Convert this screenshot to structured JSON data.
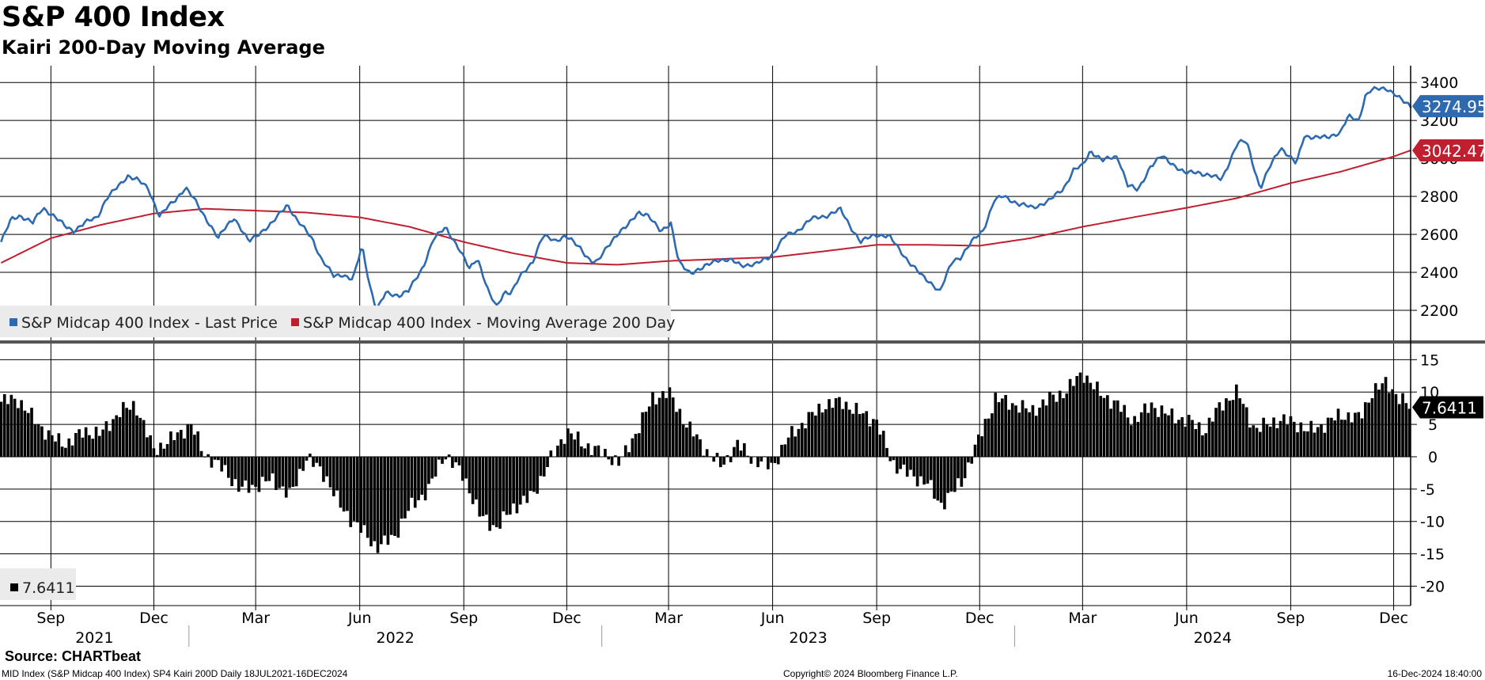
{
  "header": {
    "title": "S&P 400 Index",
    "subtitle": "Kairi 200-Day Moving Average"
  },
  "footer": {
    "source": "Source: CHARTbeat",
    "description": "MID Index (S&P Midcap 400 Index) SP4 Kairi 200D  Daily 18JUL2021-16DEC2024",
    "copyright": "Copyright© 2024 Bloomberg Finance L.P.",
    "timestamp": "16-Dec-2024 18:40:00"
  },
  "colors": {
    "price": "#2e6ab0",
    "moving_average": "#c01f2f",
    "kairi": "#000000",
    "grid": "#000000"
  },
  "chart_data": [
    {
      "type": "line",
      "name": "price-panel",
      "ylim": [
        2050,
        3480
      ],
      "yticks": [
        2200,
        2400,
        2600,
        2800,
        3000,
        3200,
        3400
      ],
      "legend": [
        {
          "label": "S&P Midcap 400 Index - Last Price",
          "color": "#2e6ab0"
        },
        {
          "label": "S&P Midcap 400 Index - Moving Average 200 Day",
          "color": "#c01f2f"
        }
      ],
      "last_value_labels": [
        {
          "text": "3274.95",
          "color": "#2e6ab0",
          "value": 3274.95
        },
        {
          "text": "3042.47",
          "color": "#c01f2f",
          "value": 3042.47
        }
      ],
      "series": [
        {
          "name": "S&P Midcap 400 Index - Last Price",
          "dates": [
            "2021-07-19",
            "2021-07-28",
            "2021-08-05",
            "2021-08-16",
            "2021-08-25",
            "2021-09-03",
            "2021-09-14",
            "2021-09-21",
            "2021-10-01",
            "2021-10-12",
            "2021-10-20",
            "2021-11-01",
            "2021-11-08",
            "2021-11-16",
            "2021-11-26",
            "2021-12-06",
            "2021-12-20",
            "2021-12-29",
            "2022-01-05",
            "2022-01-12",
            "2022-01-20",
            "2022-01-27",
            "2022-02-03",
            "2022-02-10",
            "2022-02-23",
            "2022-03-07",
            "2022-03-16",
            "2022-03-29",
            "2022-04-07",
            "2022-04-20",
            "2022-04-28",
            "2022-05-09",
            "2022-05-17",
            "2022-05-26",
            "2022-06-03",
            "2022-06-10",
            "2022-06-16",
            "2022-06-24",
            "2022-07-06",
            "2022-07-14",
            "2022-07-27",
            "2022-08-05",
            "2022-08-16",
            "2022-08-26",
            "2022-09-06",
            "2022-09-13",
            "2022-09-23",
            "2022-09-30",
            "2022-10-07",
            "2022-10-13",
            "2022-10-21",
            "2022-11-01",
            "2022-11-10",
            "2022-11-21",
            "2022-11-30",
            "2022-12-13",
            "2022-12-22",
            "2022-12-28",
            "2023-01-06",
            "2023-01-13",
            "2023-01-23",
            "2023-02-02",
            "2023-02-10",
            "2023-02-22",
            "2023-03-03",
            "2023-03-10",
            "2023-03-20",
            "2023-03-31",
            "2023-04-13",
            "2023-04-26",
            "2023-05-04",
            "2023-05-17",
            "2023-05-31",
            "2023-06-12",
            "2023-06-23",
            "2023-07-05",
            "2023-07-19",
            "2023-07-31",
            "2023-08-09",
            "2023-08-18",
            "2023-08-31",
            "2023-09-12",
            "2023-09-21",
            "2023-09-29",
            "2023-10-11",
            "2023-10-20",
            "2023-10-27",
            "2023-11-07",
            "2023-11-14",
            "2023-11-24",
            "2023-12-04",
            "2023-12-14",
            "2023-12-22",
            "2024-01-05",
            "2024-01-17",
            "2024-02-01",
            "2024-02-13",
            "2024-02-22",
            "2024-03-01",
            "2024-03-08",
            "2024-03-19",
            "2024-04-01",
            "2024-04-10",
            "2024-04-19",
            "2024-04-30",
            "2024-05-10",
            "2024-05-20",
            "2024-05-31",
            "2024-06-10",
            "2024-06-21",
            "2024-07-02",
            "2024-07-16",
            "2024-07-24",
            "2024-08-05",
            "2024-08-14",
            "2024-08-23",
            "2024-09-06",
            "2024-09-13",
            "2024-09-24",
            "2024-10-03",
            "2024-10-15",
            "2024-10-22",
            "2024-10-31",
            "2024-11-06",
            "2024-11-11",
            "2024-11-25",
            "2024-12-02",
            "2024-12-09",
            "2024-12-16"
          ],
          "values": [
            2560,
            2680,
            2700,
            2660,
            2740,
            2700,
            2640,
            2620,
            2660,
            2690,
            2790,
            2860,
            2910,
            2890,
            2840,
            2700,
            2780,
            2850,
            2790,
            2720,
            2650,
            2580,
            2640,
            2690,
            2560,
            2620,
            2660,
            2760,
            2670,
            2580,
            2470,
            2380,
            2390,
            2360,
            2540,
            2330,
            2200,
            2290,
            2280,
            2300,
            2430,
            2570,
            2640,
            2540,
            2420,
            2480,
            2290,
            2220,
            2300,
            2290,
            2380,
            2460,
            2590,
            2570,
            2590,
            2530,
            2460,
            2450,
            2540,
            2590,
            2640,
            2720,
            2700,
            2620,
            2660,
            2450,
            2400,
            2420,
            2470,
            2460,
            2440,
            2440,
            2490,
            2590,
            2620,
            2680,
            2700,
            2730,
            2640,
            2560,
            2600,
            2590,
            2520,
            2460,
            2380,
            2340,
            2300,
            2460,
            2480,
            2560,
            2620,
            2780,
            2800,
            2760,
            2740,
            2780,
            2840,
            2940,
            2960,
            3040,
            2990,
            3010,
            2860,
            2830,
            2960,
            3010,
            2970,
            2920,
            2930,
            2910,
            2890,
            3080,
            3090,
            2840,
            2960,
            3060,
            2970,
            3120,
            3110,
            3110,
            3140,
            3220,
            3200,
            3330,
            3360,
            3370,
            3340,
            3300,
            3274.95
          ]
        },
        {
          "name": "S&P Midcap 400 Index - Moving Average 200 Day",
          "dates": [
            "2021-07-19",
            "2021-09-01",
            "2021-10-15",
            "2021-12-01",
            "2022-01-15",
            "2022-03-01",
            "2022-04-15",
            "2022-06-01",
            "2022-07-15",
            "2022-09-01",
            "2022-10-15",
            "2022-12-01",
            "2023-01-15",
            "2023-03-01",
            "2023-04-15",
            "2023-06-01",
            "2023-07-15",
            "2023-09-01",
            "2023-10-15",
            "2023-12-01",
            "2024-01-15",
            "2024-03-01",
            "2024-04-15",
            "2024-06-01",
            "2024-07-15",
            "2024-09-01",
            "2024-10-15",
            "2024-12-01",
            "2024-12-16"
          ],
          "values": [
            2450,
            2580,
            2650,
            2710,
            2735,
            2725,
            2715,
            2690,
            2640,
            2560,
            2500,
            2450,
            2440,
            2460,
            2470,
            2480,
            2510,
            2545,
            2545,
            2540,
            2580,
            2640,
            2690,
            2740,
            2790,
            2870,
            2930,
            3010,
            3042.47
          ]
        }
      ]
    },
    {
      "type": "bar",
      "name": "kairi-panel",
      "ylim": [
        -23,
        17
      ],
      "yticks": [
        15,
        10,
        5,
        0,
        -5,
        -10,
        -15,
        -20
      ],
      "legend": [
        {
          "label": "7.6411",
          "color": "#000000"
        }
      ],
      "last_value_labels": [
        {
          "text": "7.6411",
          "color": "#000000",
          "value": 7.6411
        }
      ],
      "series": [
        {
          "name": "Kairi 200D",
          "dates": [
            "2021-07-19",
            "2021-08-02",
            "2021-08-16",
            "2021-09-01",
            "2021-09-15",
            "2021-10-01",
            "2021-10-15",
            "2021-11-01",
            "2021-11-15",
            "2021-12-01",
            "2021-12-15",
            "2022-01-03",
            "2022-01-14",
            "2022-02-01",
            "2022-02-15",
            "2022-03-01",
            "2022-03-15",
            "2022-04-01",
            "2022-04-15",
            "2022-05-02",
            "2022-05-16",
            "2022-06-01",
            "2022-06-16",
            "2022-07-01",
            "2022-07-15",
            "2022-08-01",
            "2022-08-15",
            "2022-09-01",
            "2022-09-15",
            "2022-09-30",
            "2022-10-14",
            "2022-11-01",
            "2022-11-15",
            "2022-12-01",
            "2022-12-15",
            "2023-01-03",
            "2023-01-17",
            "2023-02-01",
            "2023-02-15",
            "2023-03-01",
            "2023-03-15",
            "2023-04-03",
            "2023-04-17",
            "2023-05-01",
            "2023-05-15",
            "2023-06-01",
            "2023-06-15",
            "2023-07-03",
            "2023-07-17",
            "2023-08-01",
            "2023-08-15",
            "2023-09-01",
            "2023-09-15",
            "2023-10-02",
            "2023-10-16",
            "2023-10-27",
            "2023-11-15",
            "2023-12-01",
            "2023-12-15",
            "2024-01-02",
            "2024-01-16",
            "2024-02-01",
            "2024-02-15",
            "2024-03-01",
            "2024-03-15",
            "2024-04-01",
            "2024-04-15",
            "2024-05-01",
            "2024-05-15",
            "2024-06-03",
            "2024-06-17",
            "2024-07-01",
            "2024-07-16",
            "2024-08-01",
            "2024-08-15",
            "2024-09-03",
            "2024-09-16",
            "2024-10-01",
            "2024-10-15",
            "2024-11-01",
            "2024-11-12",
            "2024-11-25",
            "2024-12-06",
            "2024-12-16"
          ],
          "values": [
            8.5,
            9.0,
            6.0,
            3.0,
            2.0,
            4.0,
            3.5,
            7.0,
            8.0,
            1.0,
            2.5,
            5.0,
            0.5,
            -2.0,
            -5.0,
            -4.5,
            -3.5,
            -6.0,
            0.0,
            -3.0,
            -8.0,
            -11.0,
            -14.0,
            -12.5,
            -8.0,
            -5.0,
            0.5,
            -3.0,
            -9.0,
            -11.0,
            -8.0,
            -6.0,
            -1.0,
            4.0,
            2.0,
            0.5,
            -1.0,
            4.0,
            9.0,
            10.0,
            5.5,
            1.0,
            -1.5,
            2.0,
            -0.5,
            -1.5,
            3.0,
            6.0,
            8.0,
            8.5,
            7.0,
            5.5,
            -1.0,
            -3.0,
            -4.0,
            -7.5,
            -4.0,
            3.0,
            9.0,
            8.0,
            7.0,
            9.0,
            10.0,
            13.0,
            10.0,
            8.0,
            5.5,
            8.0,
            6.5,
            5.5,
            4.0,
            8.0,
            10.0,
            4.0,
            5.5,
            5.5,
            4.0,
            5.0,
            6.5,
            6.0,
            10.0,
            11.5,
            9.0,
            7.6411
          ]
        }
      ]
    }
  ],
  "x_axis": {
    "months": [
      {
        "label": "Sep",
        "date": "2021-09-01"
      },
      {
        "label": "Dec",
        "date": "2021-12-01"
      },
      {
        "label": "Mar",
        "date": "2022-03-01"
      },
      {
        "label": "Jun",
        "date": "2022-06-01"
      },
      {
        "label": "Sep",
        "date": "2022-09-01"
      },
      {
        "label": "Dec",
        "date": "2022-12-01"
      },
      {
        "label": "Mar",
        "date": "2023-03-01"
      },
      {
        "label": "Jun",
        "date": "2023-06-01"
      },
      {
        "label": "Sep",
        "date": "2023-09-01"
      },
      {
        "label": "Dec",
        "date": "2023-12-01"
      },
      {
        "label": "Mar",
        "date": "2024-03-01"
      },
      {
        "label": "Jun",
        "date": "2024-06-01"
      },
      {
        "label": "Sep",
        "date": "2024-09-01"
      },
      {
        "label": "Dec",
        "date": "2024-12-01"
      }
    ],
    "years": [
      {
        "label": "2021",
        "start": "2021-07-18",
        "end": "2022-01-01"
      },
      {
        "label": "2022",
        "start": "2022-01-01",
        "end": "2023-01-01"
      },
      {
        "label": "2023",
        "start": "2023-01-01",
        "end": "2024-01-01"
      },
      {
        "label": "2024",
        "start": "2024-01-01",
        "end": "2024-12-16"
      }
    ],
    "start": "2021-07-18",
    "end": "2024-12-16"
  }
}
